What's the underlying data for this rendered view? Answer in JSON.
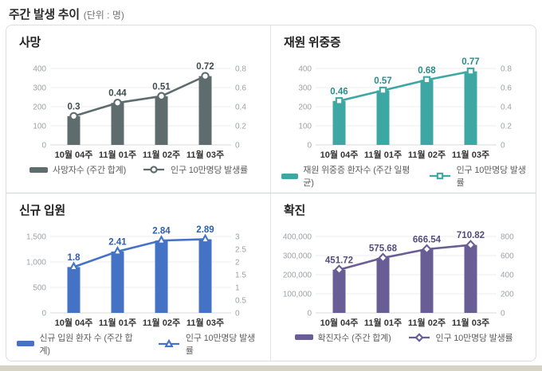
{
  "page": {
    "title": "주간 발생 추이",
    "unit": "(단위 : 명)"
  },
  "chart_data": [
    {
      "type": "bar",
      "title": "사망",
      "categories": [
        "10월 04주",
        "11월 01주",
        "11월 02주",
        "11월 03주"
      ],
      "series": [
        {
          "name": "사망자수 (주간 합계)",
          "type": "bar",
          "axis": "left",
          "values": [
            150,
            220,
            255,
            360
          ]
        },
        {
          "name": "인구 10만명당 발생률",
          "type": "line",
          "axis": "right",
          "values": [
            0.3,
            0.44,
            0.51,
            0.72
          ]
        }
      ],
      "data_labels": [
        "0.3",
        "0.44",
        "0.51",
        "0.72"
      ],
      "left_axis": {
        "min": 0,
        "max": 400,
        "ticks": [
          {
            "v": 400,
            "label": "400"
          },
          {
            "v": 300,
            "label": "300"
          },
          {
            "v": 200,
            "label": "200"
          },
          {
            "v": 100,
            "label": "100"
          },
          {
            "v": 0,
            "label": "0"
          }
        ]
      },
      "right_axis": {
        "min": 0,
        "max": 0.8,
        "ticks": [
          {
            "v": 0.8,
            "label": "0.8"
          },
          {
            "v": 0.6,
            "label": "0.6"
          },
          {
            "v": 0.4,
            "label": "0.4"
          },
          {
            "v": 0.2,
            "label": "0.2"
          },
          {
            "v": 0,
            "label": "0"
          }
        ]
      },
      "marker": "circle",
      "color": "#5e6c6e",
      "label_color": "#3f4b4d",
      "grid": true,
      "legend_position": "bottom"
    },
    {
      "type": "bar",
      "title": "재원 위중증",
      "categories": [
        "10월 04주",
        "11월 01주",
        "11월 02주",
        "11월 03주"
      ],
      "series": [
        {
          "name": "재원 위중증 환자수 (주간 일평균)",
          "type": "bar",
          "axis": "left",
          "values": [
            230,
            285,
            340,
            385
          ]
        },
        {
          "name": "인구 10만명당 발생률",
          "type": "line",
          "axis": "right",
          "values": [
            0.46,
            0.57,
            0.68,
            0.77
          ]
        }
      ],
      "data_labels": [
        "0.46",
        "0.57",
        "0.68",
        "0.77"
      ],
      "left_axis": {
        "min": 0,
        "max": 400,
        "ticks": [
          {
            "v": 400,
            "label": "400"
          },
          {
            "v": 300,
            "label": "300"
          },
          {
            "v": 200,
            "label": "200"
          },
          {
            "v": 100,
            "label": "100"
          },
          {
            "v": 0,
            "label": "0"
          }
        ]
      },
      "right_axis": {
        "min": 0,
        "max": 0.8,
        "ticks": [
          {
            "v": 0.8,
            "label": "0.8"
          },
          {
            "v": 0.6,
            "label": "0.6"
          },
          {
            "v": 0.4,
            "label": "0.4"
          },
          {
            "v": 0.2,
            "label": "0.2"
          },
          {
            "v": 0,
            "label": "0"
          }
        ]
      },
      "marker": "square",
      "color": "#3da8a3",
      "label_color": "#2a8c88",
      "grid": true,
      "legend_position": "bottom"
    },
    {
      "type": "bar",
      "title": "신규 입원",
      "categories": [
        "10월 04주",
        "11월 01주",
        "11월 02주",
        "11월 03주"
      ],
      "series": [
        {
          "name": "신규 입원 환자 수 (주간 합계)",
          "type": "bar",
          "axis": "left",
          "values": [
            900,
            1205,
            1420,
            1445
          ]
        },
        {
          "name": "인구 10만명당 발생률",
          "type": "line",
          "axis": "right",
          "values": [
            1.8,
            2.41,
            2.84,
            2.89
          ]
        }
      ],
      "data_labels": [
        "1.8",
        "2.41",
        "2.84",
        "2.89"
      ],
      "left_axis": {
        "min": 0,
        "max": 1500,
        "ticks": [
          {
            "v": 1500,
            "label": "1,500"
          },
          {
            "v": 1000,
            "label": "1,000"
          },
          {
            "v": 500,
            "label": "500"
          },
          {
            "v": 0,
            "label": "0"
          }
        ]
      },
      "right_axis": {
        "min": 0,
        "max": 3,
        "ticks": [
          {
            "v": 3,
            "label": "3"
          },
          {
            "v": 2.5,
            "label": "2.5"
          },
          {
            "v": 2,
            "label": "2"
          },
          {
            "v": 1.5,
            "label": "1.5"
          },
          {
            "v": 1,
            "label": "1"
          },
          {
            "v": 0.5,
            "label": "0.5"
          },
          {
            "v": 0,
            "label": "0"
          }
        ]
      },
      "marker": "triangle",
      "color": "#4472c4",
      "label_color": "#2e5fae",
      "grid": true,
      "legend_position": "bottom"
    },
    {
      "type": "bar",
      "title": "확진",
      "categories": [
        "10월 04주",
        "11월 01주",
        "11월 02주",
        "11월 03주"
      ],
      "series": [
        {
          "name": "확진자수 (주간 합계)",
          "type": "bar",
          "axis": "left",
          "values": [
            225900,
            287800,
            333300,
            355400
          ]
        },
        {
          "name": "인구 10만명당 발생률",
          "type": "line",
          "axis": "right",
          "values": [
            451.72,
            575.68,
            666.54,
            710.82
          ]
        }
      ],
      "data_labels": [
        "451.72",
        "575.68",
        "666.54",
        "710.82"
      ],
      "left_axis": {
        "min": 0,
        "max": 400000,
        "ticks": [
          {
            "v": 400000,
            "label": "400,000"
          },
          {
            "v": 300000,
            "label": "300,000"
          },
          {
            "v": 200000,
            "label": "200,000"
          },
          {
            "v": 100000,
            "label": "100,000"
          },
          {
            "v": 0,
            "label": "0"
          }
        ]
      },
      "right_axis": {
        "min": 0,
        "max": 800,
        "ticks": [
          {
            "v": 800,
            "label": "800"
          },
          {
            "v": 600,
            "label": "600"
          },
          {
            "v": 400,
            "label": "400"
          },
          {
            "v": 200,
            "label": "200"
          },
          {
            "v": 0,
            "label": "0"
          }
        ]
      },
      "marker": "diamond",
      "color": "#685d94",
      "label_color": "#554c7c",
      "grid": true,
      "legend_position": "bottom"
    }
  ]
}
